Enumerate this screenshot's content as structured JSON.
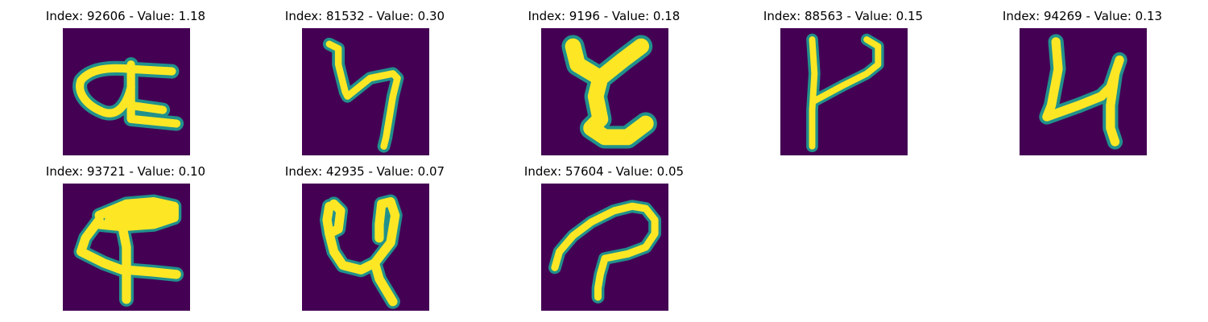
{
  "panels": [
    {
      "title": "Index: 92606 - Value: 1.18"
    },
    {
      "title": "Index: 81532 - Value: 0.30"
    },
    {
      "title": "Index: 9196 - Value: 0.18"
    },
    {
      "title": "Index: 88563 - Value: 0.15"
    },
    {
      "title": "Index: 94269 - Value: 0.13"
    },
    {
      "title": "Index: 93721 - Value: 0.10"
    },
    {
      "title": "Index: 42935 - Value: 0.07"
    },
    {
      "title": "Index: 57604 - Value: 0.05"
    }
  ],
  "colors": {
    "background": "#440154",
    "stroke_edge": "#21918c",
    "stroke_core": "#fde725"
  }
}
